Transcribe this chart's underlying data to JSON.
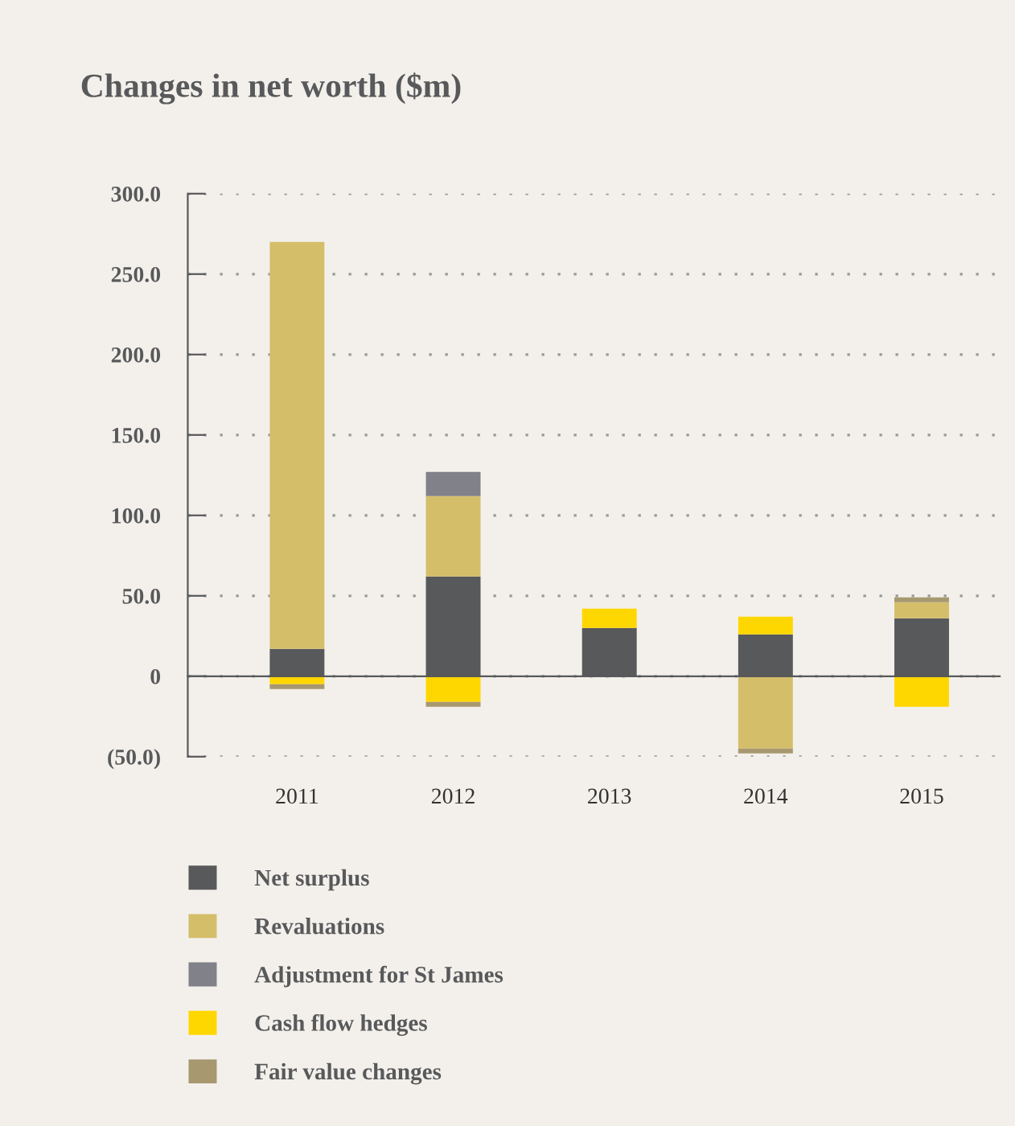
{
  "chart_data": {
    "type": "bar",
    "title": "Changes in net worth ($m)",
    "stacked": true,
    "categories": [
      "2011",
      "2012",
      "2013",
      "2014",
      "2015"
    ],
    "series": [
      {
        "name": "Net surplus",
        "color": "#58595b",
        "values": [
          17,
          62,
          30,
          26,
          36
        ]
      },
      {
        "name": "Revaluations",
        "color": "#d4be6a",
        "values": [
          253,
          50,
          null,
          -45,
          10
        ]
      },
      {
        "name": "Adjustment for St James",
        "color": "#808189",
        "values": [
          null,
          15,
          null,
          null,
          null
        ]
      },
      {
        "name": "Cash flow hedges",
        "color": "#ffd700",
        "values": [
          -5,
          -16,
          12,
          11,
          -19
        ]
      },
      {
        "name": "Fair value changes",
        "color": "#a79870",
        "values": [
          -3,
          -3,
          null,
          -3,
          3
        ]
      }
    ],
    "ylim": [
      -50,
      300
    ],
    "yticks": [
      {
        "value": -50,
        "label": "(50.0)"
      },
      {
        "value": 0,
        "label": "0"
      },
      {
        "value": 50,
        "label": "50.0"
      },
      {
        "value": 100,
        "label": "100.0"
      },
      {
        "value": 150,
        "label": "150.0"
      },
      {
        "value": 200,
        "label": "200.0"
      },
      {
        "value": 250,
        "label": "250.0"
      },
      {
        "value": 300,
        "label": "300.0"
      }
    ],
    "grid": "y",
    "legend": "bottom"
  }
}
